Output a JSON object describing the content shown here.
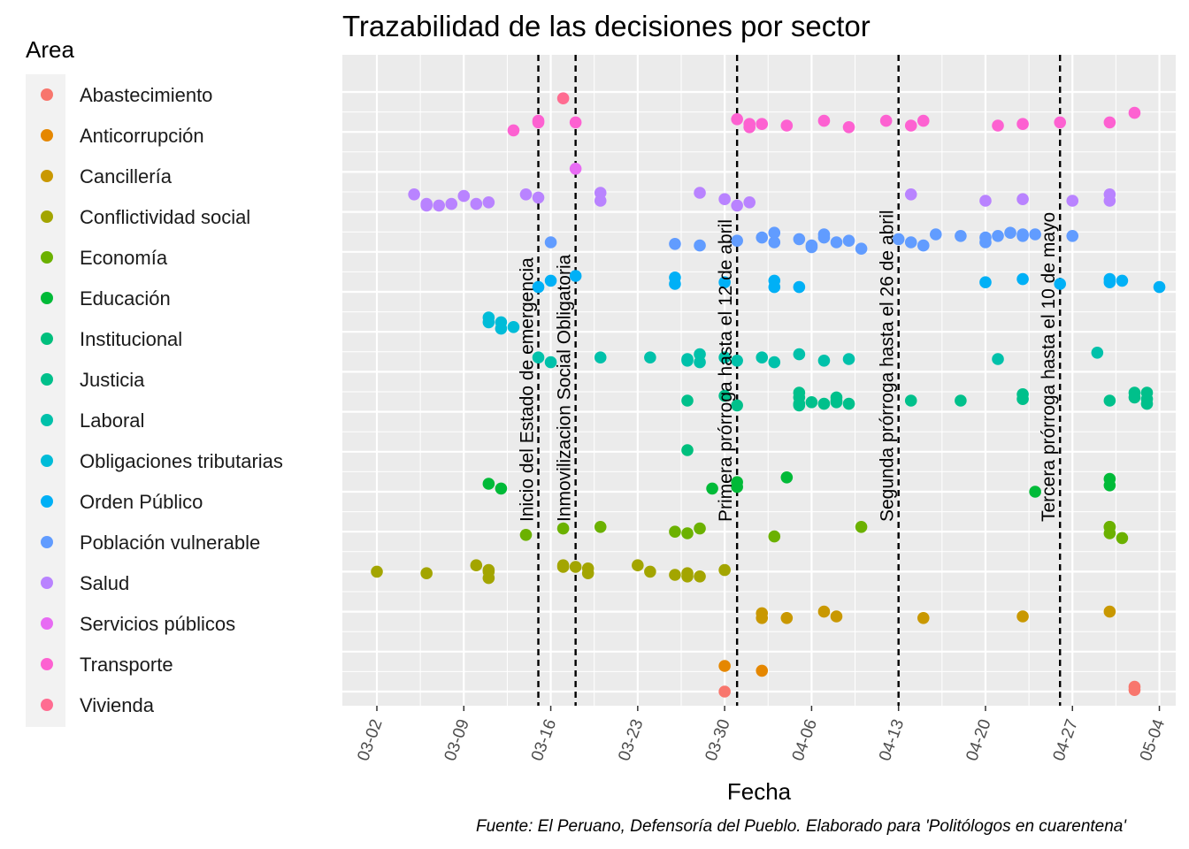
{
  "chart_data": {
    "type": "scatter",
    "title": "Trazabilidad de las decisiones por sector",
    "xlabel": "Fecha",
    "ylabel": "",
    "caption": "Fuente: El Peruano, Defensoría del Pueblo. Elaborado para 'Politólogos en cuarentena'",
    "legend_title": "Area",
    "legend_position": "left",
    "grid": true,
    "x_type": "date",
    "xlim": [
      "2020-02-29",
      "2020-05-05"
    ],
    "x_ticks": [
      "2020-03-02",
      "2020-03-09",
      "2020-03-16",
      "2020-03-23",
      "2020-03-30",
      "2020-04-06",
      "2020-04-13",
      "2020-04-20",
      "2020-04-27",
      "2020-05-04"
    ],
    "x_tick_labels": [
      "03-02",
      "03-09",
      "03-16",
      "03-23",
      "03-30",
      "04-06",
      "04-13",
      "04-20",
      "04-27",
      "05-04"
    ],
    "vlines": [
      {
        "date": "2020-03-15",
        "label": "Inicio del Estado de emergencia"
      },
      {
        "date": "2020-03-18",
        "label": "Inmovilizacion Social Obligatoria"
      },
      {
        "date": "2020-03-31",
        "label": "Primera prórroga hasta el 12 de abril"
      },
      {
        "date": "2020-04-13",
        "label": "Segunda prórroga hasta el 26 de abril"
      },
      {
        "date": "2020-04-26",
        "label": "Tercera prórroga hasta el 10 de mayo"
      }
    ],
    "series": [
      {
        "name": "Abastecimiento",
        "color": "#F8766D",
        "points": [
          [
            "2020-03-30",
            1.3
          ],
          [
            "2020-05-02",
            1.6
          ],
          [
            "2020-05-02",
            1.4
          ]
        ]
      },
      {
        "name": "Anticorrupción",
        "color": "#E58700",
        "points": [
          [
            "2020-03-30",
            0.4
          ],
          [
            "2020-04-02",
            0.1
          ]
        ]
      },
      {
        "name": "Cancillería",
        "color": "#C99800",
        "points": [
          [
            "2020-04-02",
            1.2
          ],
          [
            "2020-04-02",
            0.9
          ],
          [
            "2020-04-04",
            0.9
          ],
          [
            "2020-04-07",
            1.3
          ],
          [
            "2020-04-08",
            1.0
          ],
          [
            "2020-04-15",
            0.9
          ],
          [
            "2020-04-23",
            1.0
          ],
          [
            "2020-04-30",
            1.3
          ]
        ]
      },
      {
        "name": "Conflictividad social",
        "color": "#A3A500",
        "points": [
          [
            "2020-03-02",
            1.3
          ],
          [
            "2020-03-06",
            1.2
          ],
          [
            "2020-03-10",
            1.7
          ],
          [
            "2020-03-11",
            1.4
          ],
          [
            "2020-03-11",
            1.3
          ],
          [
            "2020-03-11",
            0.9
          ],
          [
            "2020-03-17",
            1.6
          ],
          [
            "2020-03-17",
            1.7
          ],
          [
            "2020-03-18",
            1.6
          ],
          [
            "2020-03-19",
            1.5
          ],
          [
            "2020-03-19",
            1.2
          ],
          [
            "2020-03-23",
            1.7
          ],
          [
            "2020-03-24",
            1.3
          ],
          [
            "2020-03-26",
            1.1
          ],
          [
            "2020-03-27",
            1.0
          ],
          [
            "2020-03-27",
            1.2
          ],
          [
            "2020-03-28",
            1.0
          ],
          [
            "2020-03-30",
            1.4
          ]
        ]
      },
      {
        "name": "Economía",
        "color": "#6BB100",
        "points": [
          [
            "2020-03-14",
            1.1
          ],
          [
            "2020-03-17",
            1.5
          ],
          [
            "2020-03-20",
            1.6
          ],
          [
            "2020-03-26",
            1.3
          ],
          [
            "2020-03-27",
            1.2
          ],
          [
            "2020-03-28",
            1.5
          ],
          [
            "2020-04-03",
            1.0
          ],
          [
            "2020-04-10",
            1.6
          ],
          [
            "2020-04-30",
            1.6
          ],
          [
            "2020-04-30",
            1.2
          ],
          [
            "2020-04-30",
            1.6
          ],
          [
            "2020-05-01",
            0.9
          ]
        ]
      },
      {
        "name": "Educación",
        "color": "#00BA38",
        "points": [
          [
            "2020-03-11",
            1.8
          ],
          [
            "2020-03-12",
            1.5
          ],
          [
            "2020-03-29",
            1.5
          ],
          [
            "2020-03-31",
            1.9
          ],
          [
            "2020-03-31",
            1.6
          ],
          [
            "2020-04-04",
            2.2
          ],
          [
            "2020-04-24",
            1.3
          ],
          [
            "2020-04-30",
            2.1
          ],
          [
            "2020-04-30",
            1.7
          ]
        ]
      },
      {
        "name": "Institucional",
        "color": "#00BF7D",
        "points": [
          [
            "2020-03-27",
            1.4
          ]
        ]
      },
      {
        "name": "Justicia",
        "color": "#00C08B",
        "points": [
          [
            "2020-03-27",
            2.0
          ],
          [
            "2020-03-30",
            2.3
          ],
          [
            "2020-03-31",
            1.7
          ],
          [
            "2020-04-05",
            2.5
          ],
          [
            "2020-04-05",
            2.2
          ],
          [
            "2020-04-05",
            1.8
          ],
          [
            "2020-04-05",
            1.7
          ],
          [
            "2020-04-06",
            1.9
          ],
          [
            "2020-04-07",
            1.8
          ],
          [
            "2020-04-08",
            2.2
          ],
          [
            "2020-04-08",
            2.0
          ],
          [
            "2020-04-08",
            1.9
          ],
          [
            "2020-04-09",
            1.8
          ],
          [
            "2020-04-14",
            2.0
          ],
          [
            "2020-04-18",
            2.0
          ],
          [
            "2020-04-23",
            2.4
          ],
          [
            "2020-04-23",
            2.1
          ],
          [
            "2020-04-30",
            2.0
          ],
          [
            "2020-05-02",
            2.5
          ],
          [
            "2020-05-02",
            2.2
          ],
          [
            "2020-05-03",
            2.5
          ],
          [
            "2020-05-03",
            2.1
          ],
          [
            "2020-05-03",
            1.8
          ]
        ]
      },
      {
        "name": "Laboral",
        "color": "#00C1AA",
        "points": [
          [
            "2020-03-15",
            2.2
          ],
          [
            "2020-03-16",
            1.9
          ],
          [
            "2020-03-20",
            2.2
          ],
          [
            "2020-03-24",
            2.2
          ],
          [
            "2020-03-27",
            2.1
          ],
          [
            "2020-03-27",
            2.0
          ],
          [
            "2020-03-28",
            2.4
          ],
          [
            "2020-03-28",
            1.9
          ],
          [
            "2020-03-30",
            2.2
          ],
          [
            "2020-03-31",
            2.0
          ],
          [
            "2020-04-02",
            2.2
          ],
          [
            "2020-04-03",
            1.9
          ],
          [
            "2020-04-05",
            2.4
          ],
          [
            "2020-04-07",
            2.0
          ],
          [
            "2020-04-09",
            2.1
          ],
          [
            "2020-04-21",
            2.1
          ],
          [
            "2020-04-29",
            2.5
          ]
        ]
      },
      {
        "name": "Obligaciones tributarias",
        "color": "#00BCD8",
        "points": [
          [
            "2020-03-11",
            2.2
          ],
          [
            "2020-03-11",
            1.9
          ],
          [
            "2020-03-12",
            1.9
          ],
          [
            "2020-03-12",
            1.5
          ],
          [
            "2020-03-13",
            1.6
          ]
        ]
      },
      {
        "name": "Orden Público",
        "color": "#00B0F6",
        "points": [
          [
            "2020-03-15",
            1.6
          ],
          [
            "2020-03-16",
            2.0
          ],
          [
            "2020-03-18",
            2.3
          ],
          [
            "2020-03-26",
            2.2
          ],
          [
            "2020-03-26",
            1.8
          ],
          [
            "2020-03-30",
            1.9
          ],
          [
            "2020-04-03",
            2.0
          ],
          [
            "2020-04-03",
            1.6
          ],
          [
            "2020-04-05",
            1.6
          ],
          [
            "2020-04-20",
            1.9
          ],
          [
            "2020-04-23",
            2.1
          ],
          [
            "2020-04-26",
            1.8
          ],
          [
            "2020-04-30",
            1.9
          ],
          [
            "2020-04-30",
            2.1
          ],
          [
            "2020-05-01",
            2.0
          ],
          [
            "2020-05-04",
            1.6
          ]
        ]
      },
      {
        "name": "Población vulnerable",
        "color": "#619CFF",
        "points": [
          [
            "2020-03-16",
            1.9
          ],
          [
            "2020-03-26",
            1.8
          ],
          [
            "2020-03-28",
            1.7
          ],
          [
            "2020-03-31",
            2.0
          ],
          [
            "2020-04-02",
            2.2
          ],
          [
            "2020-04-03",
            1.9
          ],
          [
            "2020-04-03",
            2.5
          ],
          [
            "2020-04-05",
            2.1
          ],
          [
            "2020-04-06",
            1.6
          ],
          [
            "2020-04-06",
            1.7
          ],
          [
            "2020-04-07",
            2.4
          ],
          [
            "2020-04-07",
            2.2
          ],
          [
            "2020-04-08",
            1.9
          ],
          [
            "2020-04-09",
            2.0
          ],
          [
            "2020-04-10",
            1.5
          ],
          [
            "2020-04-13",
            2.1
          ],
          [
            "2020-04-14",
            1.9
          ],
          [
            "2020-04-15",
            1.7
          ],
          [
            "2020-04-16",
            2.4
          ],
          [
            "2020-04-18",
            2.3
          ],
          [
            "2020-04-20",
            1.9
          ],
          [
            "2020-04-20",
            2.2
          ],
          [
            "2020-04-21",
            2.3
          ],
          [
            "2020-04-22",
            2.5
          ],
          [
            "2020-04-23",
            2.3
          ],
          [
            "2020-04-23",
            2.4
          ],
          [
            "2020-04-24",
            2.4
          ],
          [
            "2020-04-27",
            2.3
          ]
        ]
      },
      {
        "name": "Salud",
        "color": "#B983FF",
        "points": [
          [
            "2020-03-05",
            2.4
          ],
          [
            "2020-03-06",
            1.8
          ],
          [
            "2020-03-06",
            1.7
          ],
          [
            "2020-03-07",
            1.7
          ],
          [
            "2020-03-08",
            1.8
          ],
          [
            "2020-03-09",
            2.3
          ],
          [
            "2020-03-10",
            1.8
          ],
          [
            "2020-03-11",
            1.9
          ],
          [
            "2020-03-14",
            2.4
          ],
          [
            "2020-03-15",
            2.2
          ],
          [
            "2020-03-20",
            2.0
          ],
          [
            "2020-03-20",
            2.5
          ],
          [
            "2020-03-28",
            2.5
          ],
          [
            "2020-03-30",
            2.1
          ],
          [
            "2020-03-31",
            1.7
          ],
          [
            "2020-04-01",
            1.9
          ],
          [
            "2020-04-14",
            2.4
          ],
          [
            "2020-04-20",
            2.0
          ],
          [
            "2020-04-23",
            2.1
          ],
          [
            "2020-04-27",
            2.0
          ],
          [
            "2020-04-30",
            2.4
          ],
          [
            "2020-04-30",
            2.0
          ]
        ]
      },
      {
        "name": "Servicios públicos",
        "color": "#E76BF3",
        "points": [
          [
            "2020-03-18",
            1.5
          ]
        ]
      },
      {
        "name": "Transporte",
        "color": "#FD61D1",
        "points": [
          [
            "2020-03-13",
            1.4
          ],
          [
            "2020-03-15",
            2.0
          ],
          [
            "2020-03-15",
            1.9
          ],
          [
            "2020-03-18",
            1.9
          ],
          [
            "2020-03-31",
            2.1
          ],
          [
            "2020-04-01",
            1.8
          ],
          [
            "2020-04-01",
            1.6
          ],
          [
            "2020-04-02",
            1.8
          ],
          [
            "2020-04-04",
            1.7
          ],
          [
            "2020-04-07",
            2.0
          ],
          [
            "2020-04-09",
            1.6
          ],
          [
            "2020-04-12",
            2.0
          ],
          [
            "2020-04-14",
            1.7
          ],
          [
            "2020-04-15",
            2.0
          ],
          [
            "2020-04-21",
            1.7
          ],
          [
            "2020-04-23",
            1.8
          ],
          [
            "2020-04-26",
            1.9
          ],
          [
            "2020-04-30",
            1.9
          ],
          [
            "2020-05-02",
            2.5
          ]
        ]
      },
      {
        "name": "Vivienda",
        "color": "#FF6C91",
        "points": [
          [
            "2020-03-17",
            0.9
          ]
        ]
      }
    ]
  }
}
